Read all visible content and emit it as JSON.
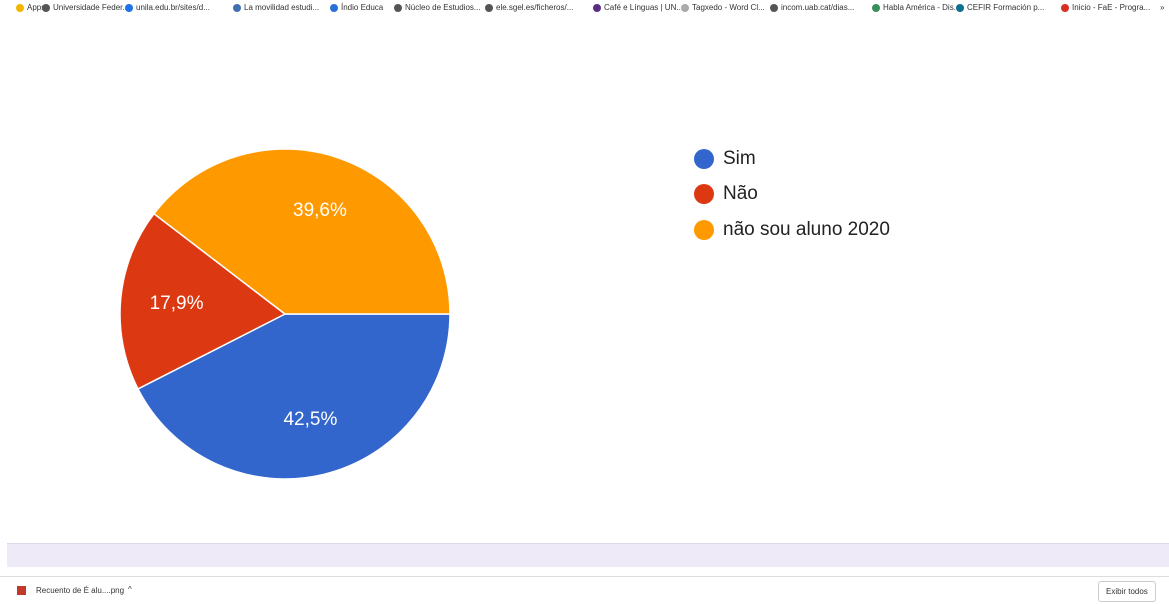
{
  "bookmarks": [
    "Apps",
    "Universidade Feder...",
    "unila.edu.br/sites/d...",
    "La movilidad estudi...",
    "Índio Educa",
    "Núcleo de Estudios...",
    "ele.sgel.es/ficheros/...",
    "Café e Línguas | UN...",
    "Tagxedo - Word Cl...",
    "incom.uab.cat/dias...",
    "Habla América - Dis...",
    "CEFIR Formación p...",
    "Inicio - FaE - Progra...",
    "»"
  ],
  "chart_data": {
    "type": "pie",
    "categories": [
      "Sim",
      "Não",
      "não sou aluno 2020"
    ],
    "values": [
      42.5,
      17.9,
      39.6
    ],
    "value_labels": [
      "42,5%",
      "17,9%",
      "39,6%"
    ],
    "colors": [
      "#3366cc",
      "#dc3912",
      "#ff9900"
    ],
    "legend": "right"
  },
  "downloads": {
    "file": "Recuento de É alu....png",
    "show_all": "Exibir todos"
  }
}
